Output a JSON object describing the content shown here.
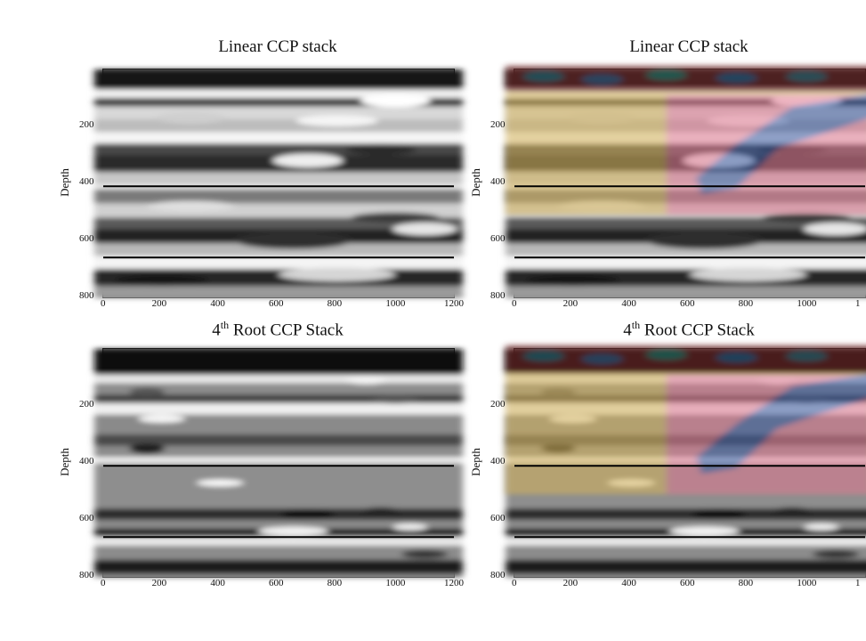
{
  "chart_data": [
    {
      "type": "heatmap",
      "title": "Linear CCP stack",
      "ylabel": "Depth",
      "xlabel": "",
      "xlim": [
        0,
        1200
      ],
      "ylim": [
        800,
        0
      ],
      "x_ticks": [
        "0",
        "200",
        "400",
        "600",
        "800",
        "1000",
        "1200"
      ],
      "y_ticks": [
        "200",
        "400",
        "600",
        "800"
      ],
      "reference_lines_depth": [
        410,
        660
      ],
      "colormap": "grayscale"
    },
    {
      "type": "heatmap",
      "title": "Linear CCP stack",
      "ylabel": "Depth",
      "xlabel": "",
      "xlim": [
        0,
        1200
      ],
      "ylim": [
        800,
        0
      ],
      "x_ticks": [
        "0",
        "200",
        "400",
        "600",
        "800",
        "1000",
        "1"
      ],
      "y_ticks": [
        "200",
        "400",
        "600",
        "800"
      ],
      "reference_lines_depth": [
        410,
        660
      ],
      "colormap": "grayscale with color overlay"
    },
    {
      "type": "heatmap",
      "title_main": "4",
      "title_sup": "th",
      "title_rest": " Root CCP Stack",
      "ylabel": "Depth",
      "xlabel": "",
      "xlim": [
        0,
        1200
      ],
      "ylim": [
        800,
        0
      ],
      "x_ticks": [
        "0",
        "200",
        "400",
        "600",
        "800",
        "1000",
        "1200"
      ],
      "y_ticks": [
        "200",
        "400",
        "600",
        "800"
      ],
      "reference_lines_depth": [
        410,
        660
      ],
      "colormap": "grayscale"
    },
    {
      "type": "heatmap",
      "title_main": "4",
      "title_sup": "th",
      "title_rest": " Root CCP Stack",
      "ylabel": "Depth",
      "xlabel": "",
      "xlim": [
        0,
        1200
      ],
      "ylim": [
        800,
        0
      ],
      "x_ticks": [
        "0",
        "200",
        "400",
        "600",
        "800",
        "1000",
        "1"
      ],
      "y_ticks": [
        "200",
        "400",
        "600",
        "800"
      ],
      "reference_lines_depth": [
        410,
        660
      ],
      "colormap": "grayscale with color overlay"
    }
  ]
}
